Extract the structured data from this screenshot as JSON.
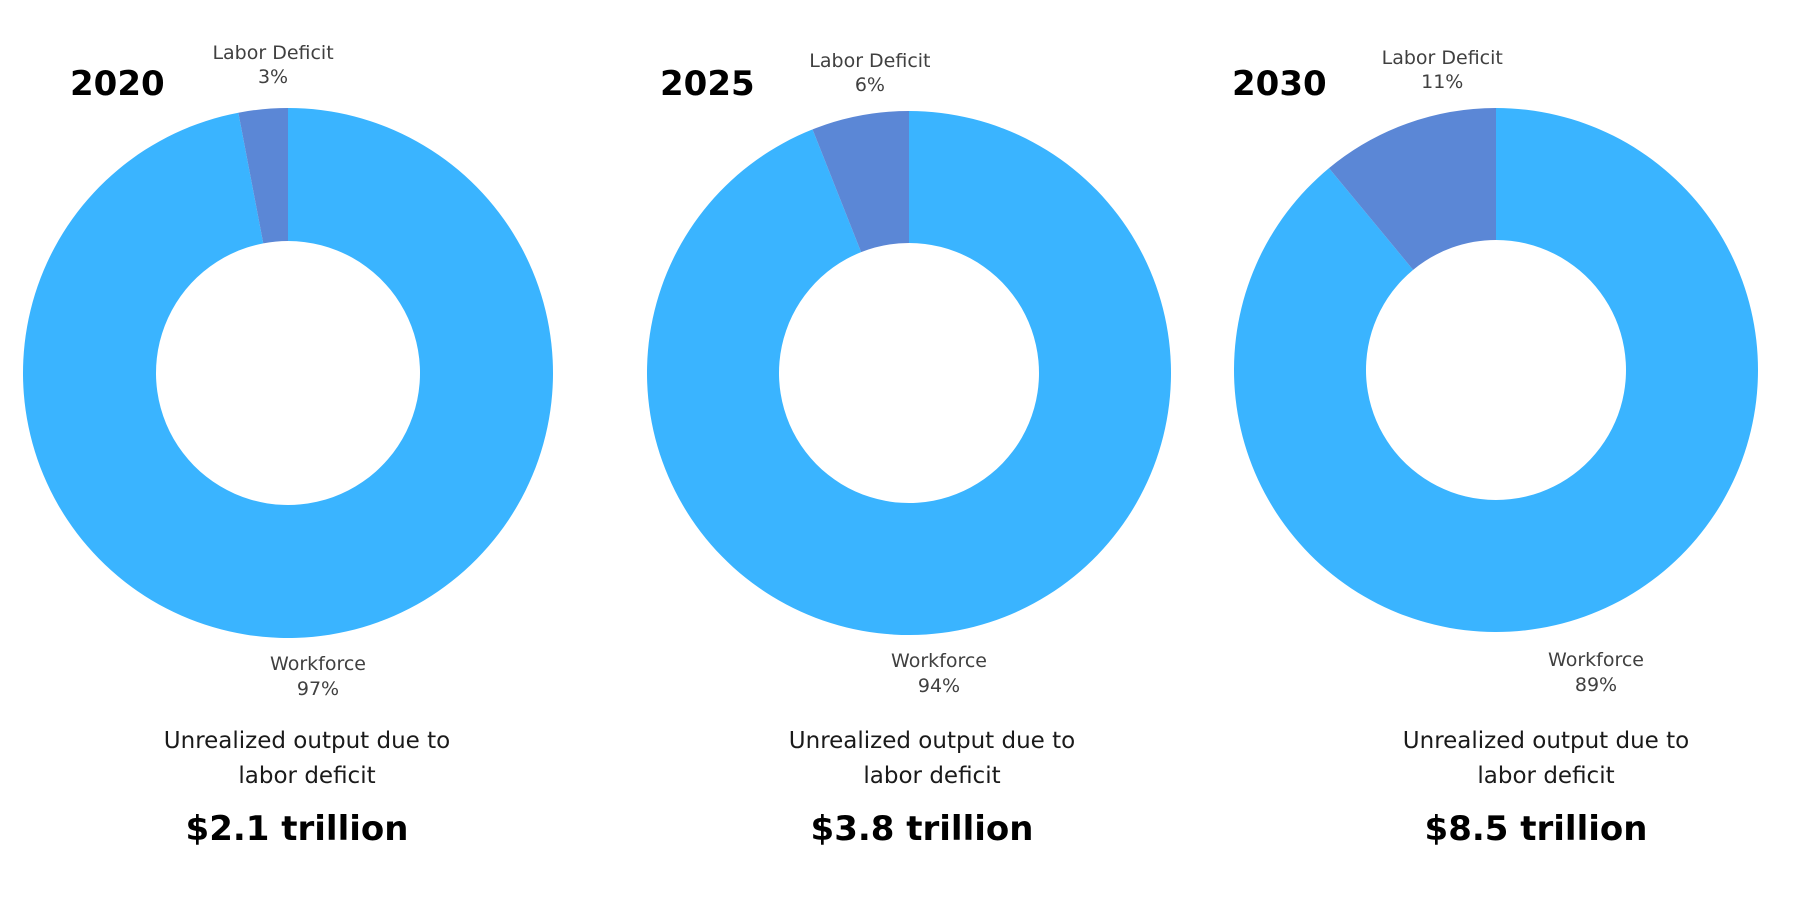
{
  "chart_data": [
    {
      "type": "pie",
      "title": "2020",
      "hole": true,
      "slices": [
        {
          "name": "Labor Deficit",
          "value": 3,
          "label": "3%",
          "color": "#5B87D6"
        },
        {
          "name": "Workforce",
          "value": 97,
          "label": "97%",
          "color": "#3AB4FF"
        }
      ],
      "caption_lines": [
        "Unrealized output due to",
        "labor deficit"
      ],
      "value_text": "$2.1 trillion"
    },
    {
      "type": "pie",
      "title": "2025",
      "hole": true,
      "slices": [
        {
          "name": "Labor Deficit",
          "value": 6,
          "label": "6%",
          "color": "#5B87D6"
        },
        {
          "name": "Workforce",
          "value": 94,
          "label": "94%",
          "color": "#3AB4FF"
        }
      ],
      "caption_lines": [
        "Unrealized output due to",
        "labor deficit"
      ],
      "value_text": "$3.8 trillion"
    },
    {
      "type": "pie",
      "title": "2030",
      "hole": true,
      "slices": [
        {
          "name": "Labor Deficit",
          "value": 11,
          "label": "11%",
          "color": "#5B87D6"
        },
        {
          "name": "Workforce",
          "value": 89,
          "label": "89%",
          "color": "#3AB4FF"
        }
      ],
      "caption_lines": [
        "Unrealized output due to",
        "labor deficit"
      ],
      "value_text": "$8.5 trillion"
    }
  ]
}
